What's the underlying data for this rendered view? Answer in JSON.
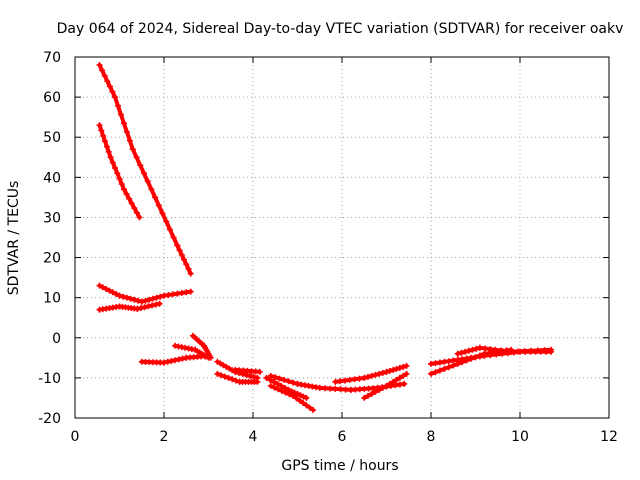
{
  "chart_data": {
    "type": "scatter",
    "title": "Day 064 of 2024, Sidereal Day-to-day VTEC variation (SDTVAR) for receiver oakv",
    "xlabel": "GPS time / hours",
    "ylabel": "SDTVAR / TECUs",
    "xlim": [
      0,
      12
    ],
    "ylim": [
      -20,
      70
    ],
    "xticks": [
      0,
      2,
      4,
      6,
      8,
      10,
      12
    ],
    "yticks": [
      -20,
      -10,
      0,
      10,
      20,
      30,
      40,
      50,
      60,
      70
    ],
    "grid": true,
    "legend": "none",
    "color": "#ff0000",
    "series": [
      {
        "points": [
          [
            0.55,
            68
          ],
          [
            0.9,
            60
          ],
          [
            1.3,
            47
          ],
          [
            1.8,
            35
          ],
          [
            2.3,
            23
          ],
          [
            2.6,
            16
          ]
        ]
      },
      {
        "points": [
          [
            0.55,
            53
          ],
          [
            0.8,
            45
          ],
          [
            1.1,
            37
          ],
          [
            1.45,
            30
          ]
        ]
      },
      {
        "points": [
          [
            0.55,
            13
          ],
          [
            1.0,
            10.5
          ],
          [
            1.5,
            9
          ],
          [
            2.0,
            10.5
          ],
          [
            2.6,
            11.5
          ]
        ]
      },
      {
        "points": [
          [
            0.55,
            7
          ],
          [
            1.0,
            7.8
          ],
          [
            1.4,
            7.2
          ],
          [
            1.9,
            8.5
          ]
        ]
      },
      {
        "points": [
          [
            1.5,
            -6
          ],
          [
            2.0,
            -6.2
          ],
          [
            2.5,
            -5
          ],
          [
            3.0,
            -4.5
          ]
        ]
      },
      {
        "points": [
          [
            2.25,
            -2
          ],
          [
            2.7,
            -3
          ],
          [
            3.0,
            -5
          ]
        ]
      },
      {
        "points": [
          [
            2.65,
            0.5
          ],
          [
            2.9,
            -2
          ],
          [
            3.05,
            -5
          ]
        ]
      },
      {
        "points": [
          [
            3.2,
            -6
          ],
          [
            3.6,
            -8.5
          ],
          [
            4.1,
            -10
          ]
        ]
      },
      {
        "points": [
          [
            3.2,
            -9
          ],
          [
            3.7,
            -11
          ],
          [
            4.1,
            -11
          ]
        ]
      },
      {
        "points": [
          [
            3.6,
            -8
          ],
          [
            4.15,
            -8.5
          ]
        ]
      },
      {
        "points": [
          [
            4.4,
            -9.5
          ],
          [
            5.0,
            -11.5
          ],
          [
            5.5,
            -12.5
          ],
          [
            6.2,
            -13
          ],
          [
            6.8,
            -12.5
          ],
          [
            7.4,
            -11.5
          ]
        ]
      },
      {
        "points": [
          [
            4.4,
            -12
          ],
          [
            4.9,
            -14.5
          ],
          [
            5.35,
            -18
          ]
        ]
      },
      {
        "points": [
          [
            4.3,
            -10
          ],
          [
            4.8,
            -13
          ],
          [
            5.2,
            -15
          ]
        ]
      },
      {
        "points": [
          [
            5.85,
            -11
          ],
          [
            6.5,
            -10
          ],
          [
            7.0,
            -8.5
          ],
          [
            7.45,
            -7
          ]
        ]
      },
      {
        "points": [
          [
            6.5,
            -15
          ],
          [
            7.0,
            -12
          ],
          [
            7.45,
            -9
          ]
        ]
      },
      {
        "points": [
          [
            8.0,
            -6.5
          ],
          [
            8.6,
            -5.5
          ],
          [
            9.2,
            -4.5
          ],
          [
            10.0,
            -3.5
          ],
          [
            10.7,
            -3.5
          ]
        ]
      },
      {
        "points": [
          [
            8.0,
            -9
          ],
          [
            8.6,
            -6.5
          ],
          [
            9.2,
            -4
          ],
          [
            9.8,
            -3
          ]
        ]
      },
      {
        "points": [
          [
            8.6,
            -4
          ],
          [
            9.1,
            -2.5
          ],
          [
            9.8,
            -3.5
          ],
          [
            10.7,
            -3
          ]
        ]
      }
    ]
  }
}
